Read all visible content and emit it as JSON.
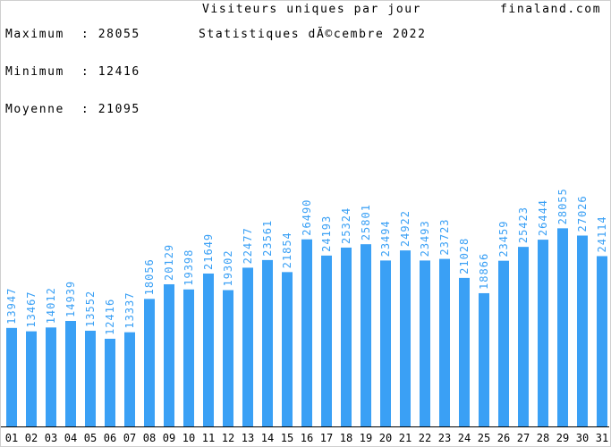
{
  "header": {
    "max_label": "Maximum  :",
    "max_value": "28055",
    "min_label": "Minimum  :",
    "min_value": "12416",
    "avg_label": "Moyenne  :",
    "avg_value": "21095",
    "title": "Visiteurs uniques par jour",
    "subtitle": "Statistiques dÃ©cembre 2022",
    "site": "finaland.com"
  },
  "colors": {
    "bar": "#3aa0f5",
    "value_label": "#3aa0f5",
    "axis": "#000000",
    "frame": "#cfcfcf"
  },
  "chart_data": {
    "type": "bar",
    "title": "Visiteurs uniques par jour",
    "subtitle": "Statistiques dÃ©cembre 2022",
    "categories": [
      "01",
      "02",
      "03",
      "04",
      "05",
      "06",
      "07",
      "08",
      "09",
      "10",
      "11",
      "12",
      "13",
      "14",
      "15",
      "16",
      "17",
      "18",
      "19",
      "20",
      "21",
      "22",
      "23",
      "24",
      "25",
      "26",
      "27",
      "28",
      "29",
      "30",
      "31"
    ],
    "values": [
      13947,
      13467,
      14012,
      14939,
      13552,
      12416,
      13337,
      18056,
      20129,
      19398,
      21649,
      19302,
      22477,
      23561,
      21854,
      26490,
      24193,
      25324,
      25801,
      23494,
      24922,
      23493,
      23723,
      21028,
      18866,
      23459,
      25423,
      26444,
      28055,
      27026,
      24114
    ],
    "ylim": [
      0,
      31000
    ],
    "grid": false,
    "legend": "none"
  }
}
